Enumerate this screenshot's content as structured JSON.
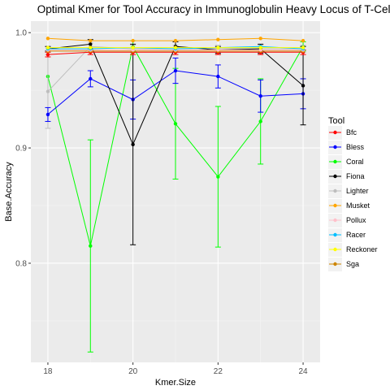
{
  "chart_data": {
    "type": "line",
    "title": "Optimal Kmer for Tool Accuracy in Immunoglobulin Heavy Locus of T-Cells",
    "xlabel": "Kmer.Size",
    "ylabel": "Base.Accuracy",
    "xlim": [
      17.6,
      24.4
    ],
    "ylim": [
      0.714,
      1.01
    ],
    "x_ticks": [
      18,
      20,
      22,
      24
    ],
    "x_tick_labels": [
      "18",
      "20",
      "22",
      "24"
    ],
    "y_ticks": [
      0.8,
      0.9,
      1.0
    ],
    "y_tick_labels": [
      "0.8",
      "0.9",
      "1.0"
    ],
    "grid": true,
    "legend": {
      "title": "Tool",
      "position": "right"
    },
    "x": [
      18,
      19,
      20,
      21,
      22,
      23,
      24
    ],
    "series": [
      {
        "name": "Bfc",
        "color": "#ff0000",
        "values": [
          0.981,
          0.983,
          0.983,
          0.983,
          0.983,
          0.983,
          0.983
        ],
        "err": [
          0.002,
          0.002,
          0.002,
          0.002,
          0.002,
          0.002,
          0.002
        ]
      },
      {
        "name": "Bless",
        "color": "#0000ff",
        "values": [
          0.929,
          0.96,
          0.942,
          0.967,
          0.962,
          0.945,
          0.947
        ],
        "err": [
          0.006,
          0.007,
          0.017,
          0.011,
          0.01,
          0.014,
          0.013
        ]
      },
      {
        "name": "Coral",
        "color": "#00ff00",
        "values": [
          0.962,
          0.815,
          0.988,
          0.921,
          0.875,
          0.923,
          0.988
        ],
        "err": [
          0.0,
          0.092,
          0.005,
          0.048,
          0.061,
          0.037,
          0.004
        ]
      },
      {
        "name": "Fiona",
        "color": "#000000",
        "values": [
          0.986,
          0.99,
          0.903,
          0.988,
          0.985,
          0.986,
          0.954
        ],
        "err": [
          0.002,
          0.004,
          0.087,
          0.004,
          0.003,
          0.004,
          0.034
        ]
      },
      {
        "name": "Lighter",
        "color": "#bebebe",
        "values": [
          0.949,
          0.988,
          0.986,
          0.986,
          0.986,
          0.986,
          0.986
        ],
        "err": [
          0.032,
          0.003,
          0.003,
          0.003,
          0.003,
          0.003,
          0.003
        ]
      },
      {
        "name": "Musket",
        "color": "#ffa500",
        "values": [
          0.995,
          0.993,
          0.993,
          0.993,
          0.994,
          0.995,
          0.993
        ],
        "err": [
          0.0,
          0.0,
          0.0,
          0.0,
          0.0,
          0.0,
          0.0
        ]
      },
      {
        "name": "Pollux",
        "color": "#ffc0cb",
        "values": [
          0.985,
          0.985,
          0.985,
          0.985,
          0.985,
          0.985,
          0.985
        ],
        "err": [
          0.0,
          0.0,
          0.0,
          0.0,
          0.0,
          0.0,
          0.0
        ]
      },
      {
        "name": "Racer",
        "color": "#00bfff",
        "values": [
          0.986,
          0.986,
          0.987,
          0.986,
          0.987,
          0.988,
          0.986
        ],
        "err": [
          0.0,
          0.0,
          0.0,
          0.0,
          0.0,
          0.0,
          0.0
        ]
      },
      {
        "name": "Reckoner",
        "color": "#ffff00",
        "values": [
          0.987,
          0.987,
          0.987,
          0.987,
          0.987,
          0.987,
          0.987
        ],
        "err": [
          0.0,
          0.0,
          0.0,
          0.0,
          0.0,
          0.0,
          0.0
        ]
      },
      {
        "name": "Sga",
        "color": "#cd8500",
        "values": [
          0.984,
          0.984,
          0.984,
          0.984,
          0.984,
          0.984,
          0.984
        ],
        "err": [
          0.0,
          0.0,
          0.0,
          0.0,
          0.0,
          0.0,
          0.0
        ]
      }
    ]
  }
}
